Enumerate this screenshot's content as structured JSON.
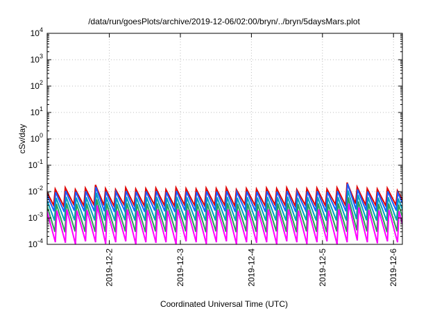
{
  "chart_data": {
    "type": "line",
    "title": "/data/run/goesPlots/archive/2019-12-06/02:00/bryn/../bryn/5daysMars.plot",
    "xlabel": "Coordinated Universal Time (UTC)",
    "ylabel": "cSv/day",
    "yscale": "log",
    "ylim": [
      0.0001,
      10000
    ],
    "y_tick_labels": [
      {
        "base": "10",
        "exp": "-4"
      },
      {
        "base": "10",
        "exp": "-3"
      },
      {
        "base": "10",
        "exp": "-2"
      },
      {
        "base": "10",
        "exp": "-1"
      },
      {
        "base": "10",
        "exp": "0"
      },
      {
        "base": "10",
        "exp": "1"
      },
      {
        "base": "10",
        "exp": "2"
      },
      {
        "base": "10",
        "exp": "3"
      },
      {
        "base": "10",
        "exp": "4"
      }
    ],
    "xlim": [
      "2019-12-01T03:00",
      "2019-12-06T03:00"
    ],
    "x_ticks": [
      "2019-12-2",
      "2019-12-3",
      "2019-12-4",
      "2019-12-5",
      "2019-12-6"
    ],
    "grid": true,
    "legend": "none",
    "sawtooth_period_hours": 3.4,
    "series": [
      {
        "color": "#dd0000",
        "peaks": [
          0.013,
          0.0125,
          0.014,
          0.012,
          0.0135,
          0.018,
          0.013,
          0.012,
          0.014,
          0.0125,
          0.013,
          0.0135,
          0.012,
          0.014,
          0.013,
          0.0125,
          0.0135,
          0.013,
          0.014,
          0.012,
          0.013,
          0.0125,
          0.0135,
          0.013,
          0.014,
          0.012,
          0.013,
          0.0135,
          0.0125,
          0.014,
          0.022,
          0.015,
          0.013,
          0.0125,
          0.0135,
          0.011
        ],
        "troughs": [
          0.003,
          0.0028,
          0.0032,
          0.0029,
          0.0031,
          0.003,
          0.0028,
          0.0031,
          0.003,
          0.0029,
          0.0032,
          0.003,
          0.0028,
          0.0031,
          0.003,
          0.0029,
          0.0031,
          0.003,
          0.0028,
          0.0032,
          0.003,
          0.0029,
          0.0031,
          0.003,
          0.0028,
          0.0031,
          0.003,
          0.0029,
          0.0032,
          0.003,
          0.0035,
          0.0031,
          0.003,
          0.0029,
          0.0031,
          0.0028
        ]
      },
      {
        "color": "#1a5cff",
        "peaks": [
          0.01,
          0.0095,
          0.0105,
          0.0098,
          0.0102,
          0.015,
          0.01,
          0.0097,
          0.0104,
          0.0099,
          0.0101,
          0.0103,
          0.0096,
          0.0105,
          0.01,
          0.0098,
          0.0102,
          0.01,
          0.0104,
          0.0097,
          0.0101,
          0.0099,
          0.0103,
          0.01,
          0.0105,
          0.0096,
          0.0101,
          0.0103,
          0.0098,
          0.0104,
          0.02,
          0.012,
          0.0101,
          0.0099,
          0.0102,
          0.009
        ],
        "troughs": [
          0.0018,
          0.0017,
          0.0019,
          0.0018,
          0.0018,
          0.0018,
          0.0017,
          0.0019,
          0.0018,
          0.0017,
          0.0019,
          0.0018,
          0.0017,
          0.0019,
          0.0018,
          0.0017,
          0.0019,
          0.0018,
          0.0017,
          0.0019,
          0.0018,
          0.0017,
          0.0019,
          0.0018,
          0.0017,
          0.0019,
          0.0018,
          0.0017,
          0.0019,
          0.0018,
          0.0021,
          0.0019,
          0.0018,
          0.0017,
          0.0019,
          0.0017
        ]
      },
      {
        "color": "#00a0c0",
        "peaks": [
          0.006,
          0.0058,
          0.0063,
          0.0059,
          0.0061,
          0.009,
          0.006,
          0.0058,
          0.0062,
          0.0059,
          0.0061,
          0.0062,
          0.0058,
          0.0063,
          0.006,
          0.0059,
          0.0061,
          0.006,
          0.0062,
          0.0058,
          0.0061,
          0.0059,
          0.0062,
          0.006,
          0.0063,
          0.0058,
          0.0061,
          0.0062,
          0.0059,
          0.0062,
          0.011,
          0.0075,
          0.0061,
          0.0059,
          0.0061,
          0.0055
        ],
        "troughs": [
          0.0008,
          0.00078,
          0.00082,
          0.00079,
          0.00081,
          0.0008,
          0.00078,
          0.00082,
          0.0008,
          0.00079,
          0.00081,
          0.0008,
          0.00078,
          0.00082,
          0.0008,
          0.00079,
          0.00081,
          0.0008,
          0.00078,
          0.00082,
          0.0008,
          0.00079,
          0.00081,
          0.0008,
          0.00078,
          0.00082,
          0.0008,
          0.00079,
          0.00081,
          0.0008,
          0.0009,
          0.00082,
          0.0008,
          0.00079,
          0.00081,
          0.00078
        ]
      },
      {
        "color": "#2e9e5a",
        "peaks": [
          0.0035,
          0.0034,
          0.0036,
          0.0034,
          0.0035,
          0.005,
          0.0035,
          0.0034,
          0.0036,
          0.0034,
          0.0035,
          0.0036,
          0.0034,
          0.0036,
          0.0035,
          0.0034,
          0.0035,
          0.0035,
          0.0036,
          0.0034,
          0.0035,
          0.0034,
          0.0036,
          0.0035,
          0.0036,
          0.0034,
          0.0035,
          0.0036,
          0.0034,
          0.0036,
          0.006,
          0.0042,
          0.0035,
          0.0034,
          0.0035,
          0.0032
        ],
        "troughs": [
          0.0003,
          0.00029,
          0.00031,
          0.0003,
          0.0003,
          0.0003,
          0.00029,
          0.00031,
          0.0003,
          0.00029,
          0.00031,
          0.0003,
          0.00029,
          0.00031,
          0.0003,
          0.00029,
          0.00031,
          0.0003,
          0.00029,
          0.00031,
          0.0003,
          0.00029,
          0.00031,
          0.0003,
          0.00029,
          0.00031,
          0.0003,
          0.00029,
          0.00031,
          0.0003,
          0.00034,
          0.00031,
          0.0003,
          0.00029,
          0.00031,
          0.00029
        ]
      },
      {
        "color": "#ff00ff",
        "peaks": [
          0.002,
          0.0019,
          0.0021,
          0.0019,
          0.002,
          0.003,
          0.002,
          0.0019,
          0.0021,
          0.0019,
          0.002,
          0.0021,
          0.0019,
          0.0021,
          0.002,
          0.0019,
          0.002,
          0.002,
          0.0021,
          0.0019,
          0.002,
          0.0019,
          0.0021,
          0.002,
          0.0021,
          0.0019,
          0.002,
          0.0021,
          0.0019,
          0.0021,
          0.0035,
          0.0025,
          0.002,
          0.0019,
          0.002,
          0.0018
        ],
        "troughs": [
          0.00012,
          0.000115,
          0.0001,
          0.00013,
          0.00012,
          0.000105,
          0.00012,
          0.00013,
          0.0001,
          0.00012,
          0.000115,
          0.00012,
          0.0001,
          0.00013,
          0.00012,
          0.000105,
          0.00012,
          0.00013,
          0.0001,
          0.00012,
          0.000115,
          0.00012,
          0.0001,
          0.00013,
          0.00012,
          0.000105,
          0.00012,
          0.00013,
          0.0001,
          0.00012,
          0.00014,
          0.00012,
          0.00011,
          0.00013,
          0.00012,
          0.00011
        ]
      }
    ]
  }
}
